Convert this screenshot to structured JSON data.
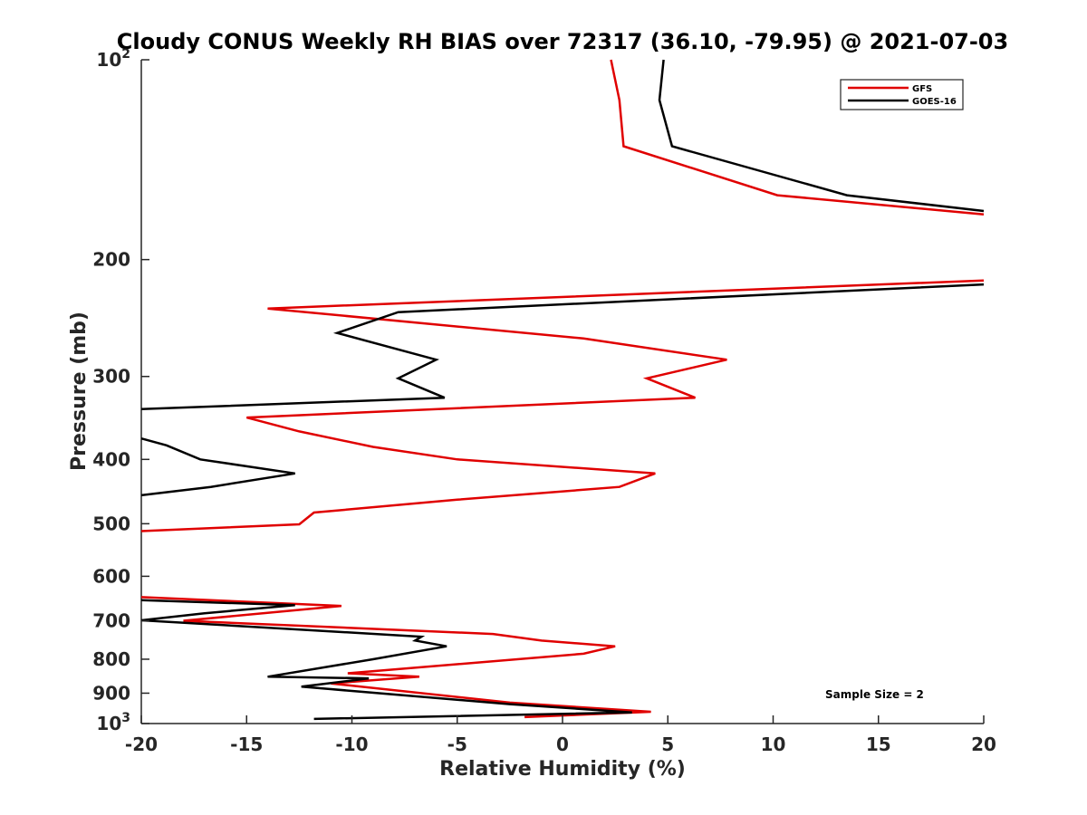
{
  "chart_data": {
    "type": "line",
    "title": "Cloudy CONUS Weekly RH BIAS over 72317 (36.10, -79.95) @ 2021-07-03",
    "xlabel": "Relative Humidity (%)",
    "ylabel": "Pressure (mb)",
    "xlim": [
      -20,
      20
    ],
    "ylim": [
      100,
      1000
    ],
    "yscale": "log",
    "y_reversed": true,
    "x_ticks": [
      -20,
      -15,
      -10,
      -5,
      0,
      5,
      10,
      15,
      20
    ],
    "x_tick_labels": [
      "-20",
      "-15",
      "-10",
      "-5",
      "0",
      "5",
      "10",
      "15",
      "20"
    ],
    "y_ticks": [
      100,
      200,
      300,
      400,
      500,
      600,
      700,
      800,
      900,
      1000
    ],
    "y_tick_labels": [
      {
        "base": "10",
        "exp": "2"
      },
      {
        "base": "200",
        "exp": ""
      },
      {
        "base": "300",
        "exp": ""
      },
      {
        "base": "400",
        "exp": ""
      },
      {
        "base": "500",
        "exp": ""
      },
      {
        "base": "600",
        "exp": ""
      },
      {
        "base": "700",
        "exp": ""
      },
      {
        "base": "800",
        "exp": ""
      },
      {
        "base": "900",
        "exp": ""
      },
      {
        "base": "10",
        "exp": "3"
      }
    ],
    "grid": false,
    "legend_position": "top-right",
    "annotation": "Sample Size = 2",
    "series": [
      {
        "name": "GFS",
        "color": "#e00000",
        "points": [
          [
            2.3,
            100
          ],
          [
            2.7,
            115
          ],
          [
            2.9,
            135
          ],
          [
            10.2,
            160
          ],
          [
            20,
            171
          ],
          [
            null,
            null
          ],
          [
            20,
            215
          ],
          [
            -14,
            237
          ],
          [
            1,
            263
          ],
          [
            7.8,
            283
          ],
          [
            4,
            302
          ],
          [
            6.3,
            323
          ],
          [
            -15,
            346
          ],
          [
            -12.5,
            363
          ],
          [
            -9,
            383
          ],
          [
            -5,
            400
          ],
          [
            4.4,
            420
          ],
          [
            2.7,
            440
          ],
          [
            -5,
            460
          ],
          [
            -11.8,
            481
          ],
          [
            -12.5,
            501
          ],
          [
            -20,
            513
          ],
          [
            null,
            null
          ],
          [
            -20,
            645
          ],
          [
            -10.5,
            665
          ],
          [
            -18,
            700
          ],
          [
            -3.3,
            733
          ],
          [
            -1,
            750
          ],
          [
            2.5,
            765
          ],
          [
            1,
            785
          ],
          [
            -10.2,
            840
          ],
          [
            -6.8,
            850
          ],
          [
            -11,
            870
          ],
          [
            -2.5,
            930
          ],
          [
            4.2,
            960
          ],
          [
            -1.8,
            978
          ]
        ]
      },
      {
        "name": "GOES-16",
        "color": "#000000",
        "points": [
          [
            4.8,
            100
          ],
          [
            4.6,
            115
          ],
          [
            5.2,
            135
          ],
          [
            13.5,
            160
          ],
          [
            20,
            169
          ],
          [
            null,
            null
          ],
          [
            20,
            218
          ],
          [
            -7.8,
            240
          ],
          [
            -10.7,
            258
          ],
          [
            -6,
            283
          ],
          [
            -7.8,
            302
          ],
          [
            -5.6,
            323
          ],
          [
            -20,
            336
          ],
          [
            null,
            null
          ],
          [
            -20,
            372
          ],
          [
            -18.8,
            381
          ],
          [
            -17.2,
            400
          ],
          [
            -12.7,
            420
          ],
          [
            -16.7,
            440
          ],
          [
            -20,
            453
          ],
          [
            null,
            null
          ],
          [
            -20,
            652
          ],
          [
            -12.7,
            663
          ],
          [
            -17,
            682
          ],
          [
            -20,
            699
          ],
          [
            -6.7,
            740
          ],
          [
            -7,
            750
          ],
          [
            -5.5,
            765
          ],
          [
            -9,
            800
          ],
          [
            -14,
            850
          ],
          [
            -9.2,
            855
          ],
          [
            -12.4,
            880
          ],
          [
            -2.5,
            935
          ],
          [
            3.3,
            962
          ],
          [
            -11.8,
            984
          ]
        ]
      }
    ]
  }
}
